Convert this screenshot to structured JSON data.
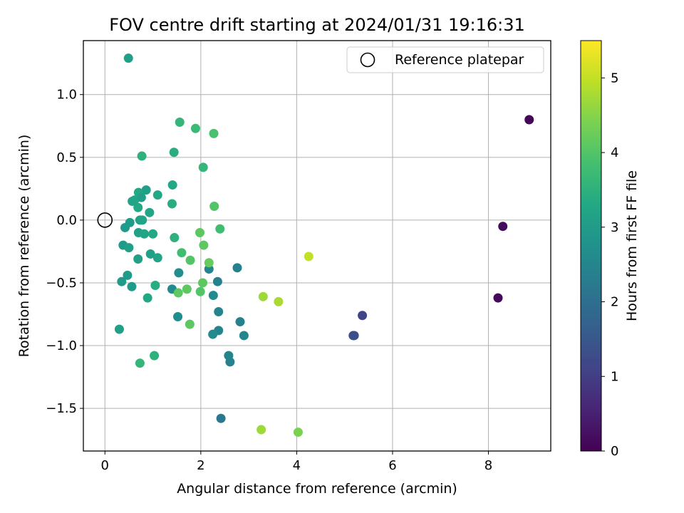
{
  "chart_data": {
    "type": "scatter",
    "title": "FOV centre drift starting at 2024/01/31 19:16:31",
    "xlabel": "Angular distance from reference (arcmin)",
    "ylabel": "Rotation from reference (arcmin)",
    "xlim": [
      -0.45,
      9.3
    ],
    "ylim": [
      -1.84,
      1.43
    ],
    "xticks": [
      0,
      2,
      4,
      6,
      8
    ],
    "yticks": [
      -1.5,
      -1.0,
      -0.5,
      0.0,
      0.5,
      1.0
    ],
    "grid": true,
    "legend": {
      "position": "top-right",
      "entries": [
        "Reference platepar"
      ]
    },
    "reference_point": {
      "x": 0.0,
      "y": 0.0
    },
    "colorbar": {
      "label": "Hours from first FF file",
      "range": [
        0,
        5.5
      ],
      "ticks": [
        0,
        1,
        2,
        3,
        4,
        5
      ],
      "colormap": "viridis"
    },
    "points": [
      {
        "x": 8.85,
        "y": 0.8,
        "c": 0.05
      },
      {
        "x": 8.3,
        "y": -0.05,
        "c": 0.15
      },
      {
        "x": 8.2,
        "y": -0.62,
        "c": 0.1
      },
      {
        "x": 5.37,
        "y": -0.76,
        "c": 1.1
      },
      {
        "x": 5.18,
        "y": -0.92,
        "c": 1.3
      },
      {
        "x": 5.2,
        "y": -0.92,
        "c": 1.35
      },
      {
        "x": 4.25,
        "y": -0.29,
        "c": 5.0
      },
      {
        "x": 3.62,
        "y": -0.65,
        "c": 4.8
      },
      {
        "x": 3.3,
        "y": -0.61,
        "c": 4.7
      },
      {
        "x": 3.26,
        "y": -1.67,
        "c": 4.7
      },
      {
        "x": 4.03,
        "y": -1.69,
        "c": 4.4
      },
      {
        "x": 2.42,
        "y": -1.58,
        "c": 2.2
      },
      {
        "x": 2.9,
        "y": -0.92,
        "c": 2.5
      },
      {
        "x": 2.82,
        "y": -0.81,
        "c": 2.4
      },
      {
        "x": 2.76,
        "y": -0.38,
        "c": 2.4
      },
      {
        "x": 2.61,
        "y": -1.13,
        "c": 2.4
      },
      {
        "x": 2.58,
        "y": -1.08,
        "c": 2.5
      },
      {
        "x": 2.37,
        "y": -0.88,
        "c": 2.5
      },
      {
        "x": 2.37,
        "y": -0.73,
        "c": 2.5
      },
      {
        "x": 2.35,
        "y": -0.49,
        "c": 2.4
      },
      {
        "x": 2.25,
        "y": -0.91,
        "c": 2.6
      },
      {
        "x": 2.26,
        "y": -0.6,
        "c": 2.6
      },
      {
        "x": 2.17,
        "y": -0.39,
        "c": 2.5
      },
      {
        "x": 1.54,
        "y": -0.42,
        "c": 2.7
      },
      {
        "x": 1.4,
        "y": -0.55,
        "c": 2.6
      },
      {
        "x": 1.52,
        "y": -0.77,
        "c": 2.7
      },
      {
        "x": 0.49,
        "y": 1.29,
        "c": 3.1
      },
      {
        "x": 1.56,
        "y": 0.78,
        "c": 3.6
      },
      {
        "x": 1.89,
        "y": 0.73,
        "c": 3.7
      },
      {
        "x": 2.27,
        "y": 0.69,
        "c": 3.9
      },
      {
        "x": 1.44,
        "y": 0.54,
        "c": 3.4
      },
      {
        "x": 0.77,
        "y": 0.51,
        "c": 3.5
      },
      {
        "x": 2.05,
        "y": 0.42,
        "c": 3.6
      },
      {
        "x": 1.41,
        "y": 0.28,
        "c": 3.3
      },
      {
        "x": 0.86,
        "y": 0.24,
        "c": 3.1
      },
      {
        "x": 0.7,
        "y": 0.22,
        "c": 3.3
      },
      {
        "x": 1.1,
        "y": 0.2,
        "c": 3.3
      },
      {
        "x": 0.62,
        "y": 0.16,
        "c": 3.3
      },
      {
        "x": 0.57,
        "y": 0.15,
        "c": 3.2
      },
      {
        "x": 0.76,
        "y": 0.18,
        "c": 3.1
      },
      {
        "x": 1.4,
        "y": 0.13,
        "c": 3.4
      },
      {
        "x": 2.28,
        "y": 0.11,
        "c": 4.0
      },
      {
        "x": 0.69,
        "y": 0.1,
        "c": 3.3
      },
      {
        "x": 0.93,
        "y": 0.06,
        "c": 3.2
      },
      {
        "x": 0.73,
        "y": 0.0,
        "c": 3.1
      },
      {
        "x": 0.78,
        "y": 0.0,
        "c": 3.2
      },
      {
        "x": 0.52,
        "y": -0.02,
        "c": 3.0
      },
      {
        "x": 0.42,
        "y": -0.06,
        "c": 3.0
      },
      {
        "x": 2.4,
        "y": -0.07,
        "c": 3.8
      },
      {
        "x": 1.98,
        "y": -0.1,
        "c": 4.1
      },
      {
        "x": 0.7,
        "y": -0.1,
        "c": 3.1
      },
      {
        "x": 0.82,
        "y": -0.11,
        "c": 3.2
      },
      {
        "x": 1.0,
        "y": -0.11,
        "c": 3.3
      },
      {
        "x": 1.45,
        "y": -0.14,
        "c": 3.5
      },
      {
        "x": 2.06,
        "y": -0.2,
        "c": 4.1
      },
      {
        "x": 0.38,
        "y": -0.2,
        "c": 3.0
      },
      {
        "x": 0.5,
        "y": -0.22,
        "c": 3.1
      },
      {
        "x": 1.6,
        "y": -0.26,
        "c": 3.8
      },
      {
        "x": 0.95,
        "y": -0.27,
        "c": 3.1
      },
      {
        "x": 1.1,
        "y": -0.3,
        "c": 3.2
      },
      {
        "x": 0.69,
        "y": -0.31,
        "c": 3.1
      },
      {
        "x": 1.78,
        "y": -0.32,
        "c": 4.0
      },
      {
        "x": 2.17,
        "y": -0.34,
        "c": 4.2
      },
      {
        "x": 0.47,
        "y": -0.44,
        "c": 3.0
      },
      {
        "x": 0.35,
        "y": -0.49,
        "c": 3.0
      },
      {
        "x": 2.04,
        "y": -0.5,
        "c": 4.1
      },
      {
        "x": 1.05,
        "y": -0.52,
        "c": 3.4
      },
      {
        "x": 0.56,
        "y": -0.53,
        "c": 3.0
      },
      {
        "x": 1.71,
        "y": -0.55,
        "c": 4.1
      },
      {
        "x": 1.99,
        "y": -0.57,
        "c": 4.0
      },
      {
        "x": 1.53,
        "y": -0.58,
        "c": 4.1
      },
      {
        "x": 0.89,
        "y": -0.62,
        "c": 3.3
      },
      {
        "x": 1.77,
        "y": -0.83,
        "c": 4.1
      },
      {
        "x": 0.3,
        "y": -0.87,
        "c": 3.1
      },
      {
        "x": 1.03,
        "y": -1.08,
        "c": 3.5
      },
      {
        "x": 0.73,
        "y": -1.14,
        "c": 3.6
      }
    ]
  }
}
